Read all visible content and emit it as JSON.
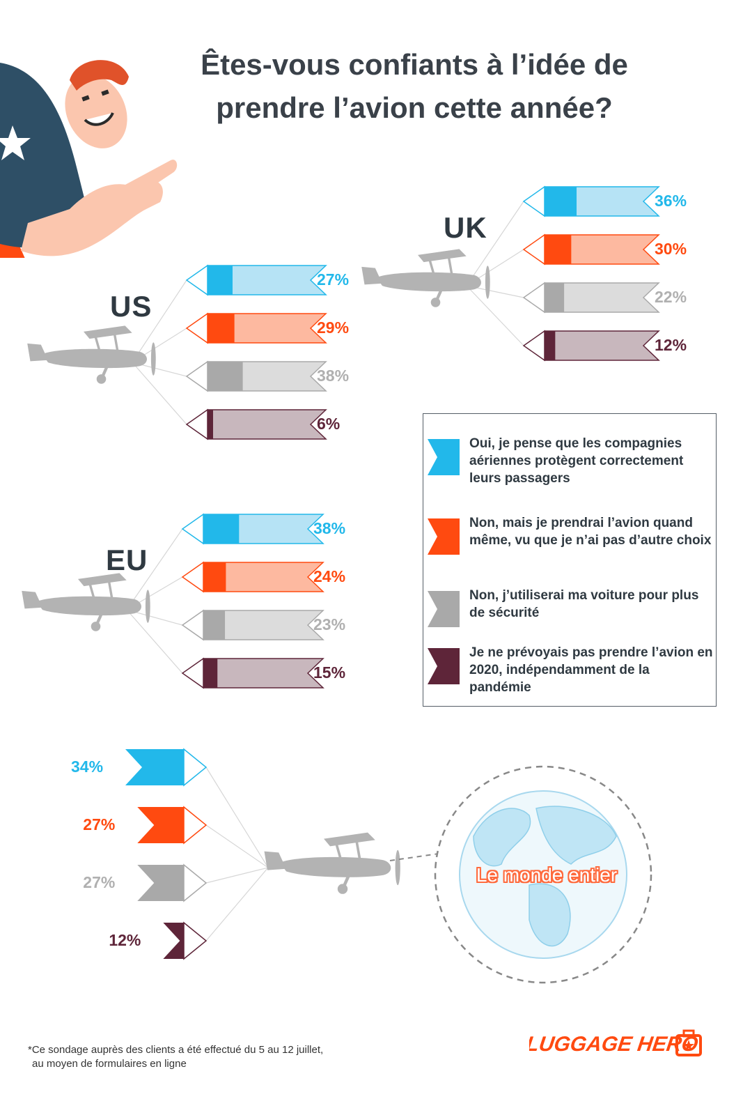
{
  "title_lines": [
    "Êtes-vous confiants à l’idée de",
    "prendre l’avion cette année?"
  ],
  "colors": {
    "yes": "#22b8ea",
    "yes_light": "#b6e3f5",
    "forced": "#ff4a10",
    "forced_light": "#fdb9a0",
    "car": "#a9a9a9",
    "car_light": "#dcdcdc",
    "notplanned": "#5e2539",
    "notplanned_light": "#c8b7bd",
    "plane": "#b3b3b3",
    "character_shirt": "#2e4f66",
    "character_skin": "#fbc6ae",
    "character_hair": "#e0522a"
  },
  "legend": [
    {
      "key": "yes",
      "text": "Oui, je pense que les compagnies aériennes protègent correctement leurs passagers"
    },
    {
      "key": "forced",
      "text": "Non, mais je prendrai l’avion quand même, vu que je n’ai pas d’autre choix"
    },
    {
      "key": "car",
      "text": "Non, j’utiliserai ma voiture pour plus de sécurité"
    },
    {
      "key": "notplanned",
      "text": "Je ne prévoyais pas prendre l’avion en 2020, indépendamment de la pandémie"
    }
  ],
  "chart_data": [
    {
      "type": "bar",
      "region": "US",
      "categories": [
        "yes",
        "forced",
        "car",
        "notplanned"
      ],
      "values": [
        27,
        29,
        38,
        6
      ],
      "value_labels": [
        "27%",
        "29%",
        "38%",
        "6%"
      ],
      "unit": "%"
    },
    {
      "type": "bar",
      "region": "UK",
      "categories": [
        "yes",
        "forced",
        "car",
        "notplanned"
      ],
      "values": [
        36,
        30,
        22,
        12
      ],
      "value_labels": [
        "36%",
        "30%",
        "22%",
        "12%"
      ],
      "unit": "%"
    },
    {
      "type": "bar",
      "region": "EU",
      "categories": [
        "yes",
        "forced",
        "car",
        "notplanned"
      ],
      "values": [
        38,
        24,
        23,
        15
      ],
      "value_labels": [
        "38%",
        "24%",
        "23%",
        "15%"
      ],
      "unit": "%"
    },
    {
      "type": "bar",
      "region": "Le monde entier",
      "categories": [
        "yes",
        "forced",
        "car",
        "notplanned"
      ],
      "values": [
        34,
        27,
        27,
        12
      ],
      "value_labels": [
        "34%",
        "27%",
        "27%",
        "12%"
      ],
      "unit": "%"
    }
  ],
  "footnote_lines": [
    "*Ce sondage auprès des clients a été effectué du 5 au 12 juillet,",
    "au moyen de formulaires en ligne"
  ],
  "logo_text": "LUGGAGE HERO"
}
